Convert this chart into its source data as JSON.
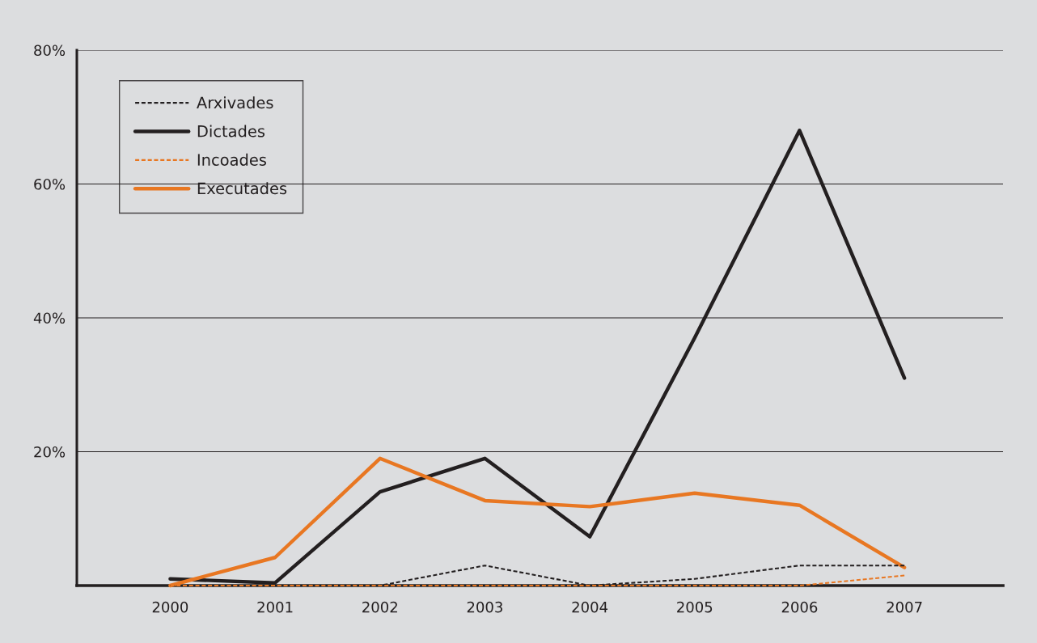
{
  "chart_data": {
    "type": "line",
    "categories": [
      "2000",
      "2001",
      "2002",
      "2003",
      "2004",
      "2005",
      "2006",
      "2007"
    ],
    "series": [
      {
        "name": "Arxivades",
        "color": "#231f20",
        "line_style": "dashed",
        "values": [
          0,
          0,
          0,
          3,
          0,
          1,
          3,
          3
        ]
      },
      {
        "name": "Dictades",
        "color": "#231f20",
        "line_style": "solid",
        "values": [
          1,
          0.4,
          14,
          19,
          7.3,
          37,
          68,
          31
        ]
      },
      {
        "name": "Incoades",
        "color": "#e87722",
        "line_style": "dashed",
        "values": [
          0,
          0,
          0,
          0,
          0,
          0,
          0,
          1.5
        ]
      },
      {
        "name": "Executades",
        "color": "#e87722",
        "line_style": "solid",
        "values": [
          0,
          4.2,
          19,
          12.7,
          11.8,
          13.8,
          12,
          2.7
        ]
      }
    ],
    "ylim": [
      0,
      80
    ],
    "yticks": [
      {
        "value": 20,
        "label": "20%"
      },
      {
        "value": 40,
        "label": "40%"
      },
      {
        "value": 60,
        "label": "60%"
      },
      {
        "value": 80,
        "label": "80%"
      }
    ],
    "grid": "y",
    "legend": "top left",
    "marker": "none"
  }
}
